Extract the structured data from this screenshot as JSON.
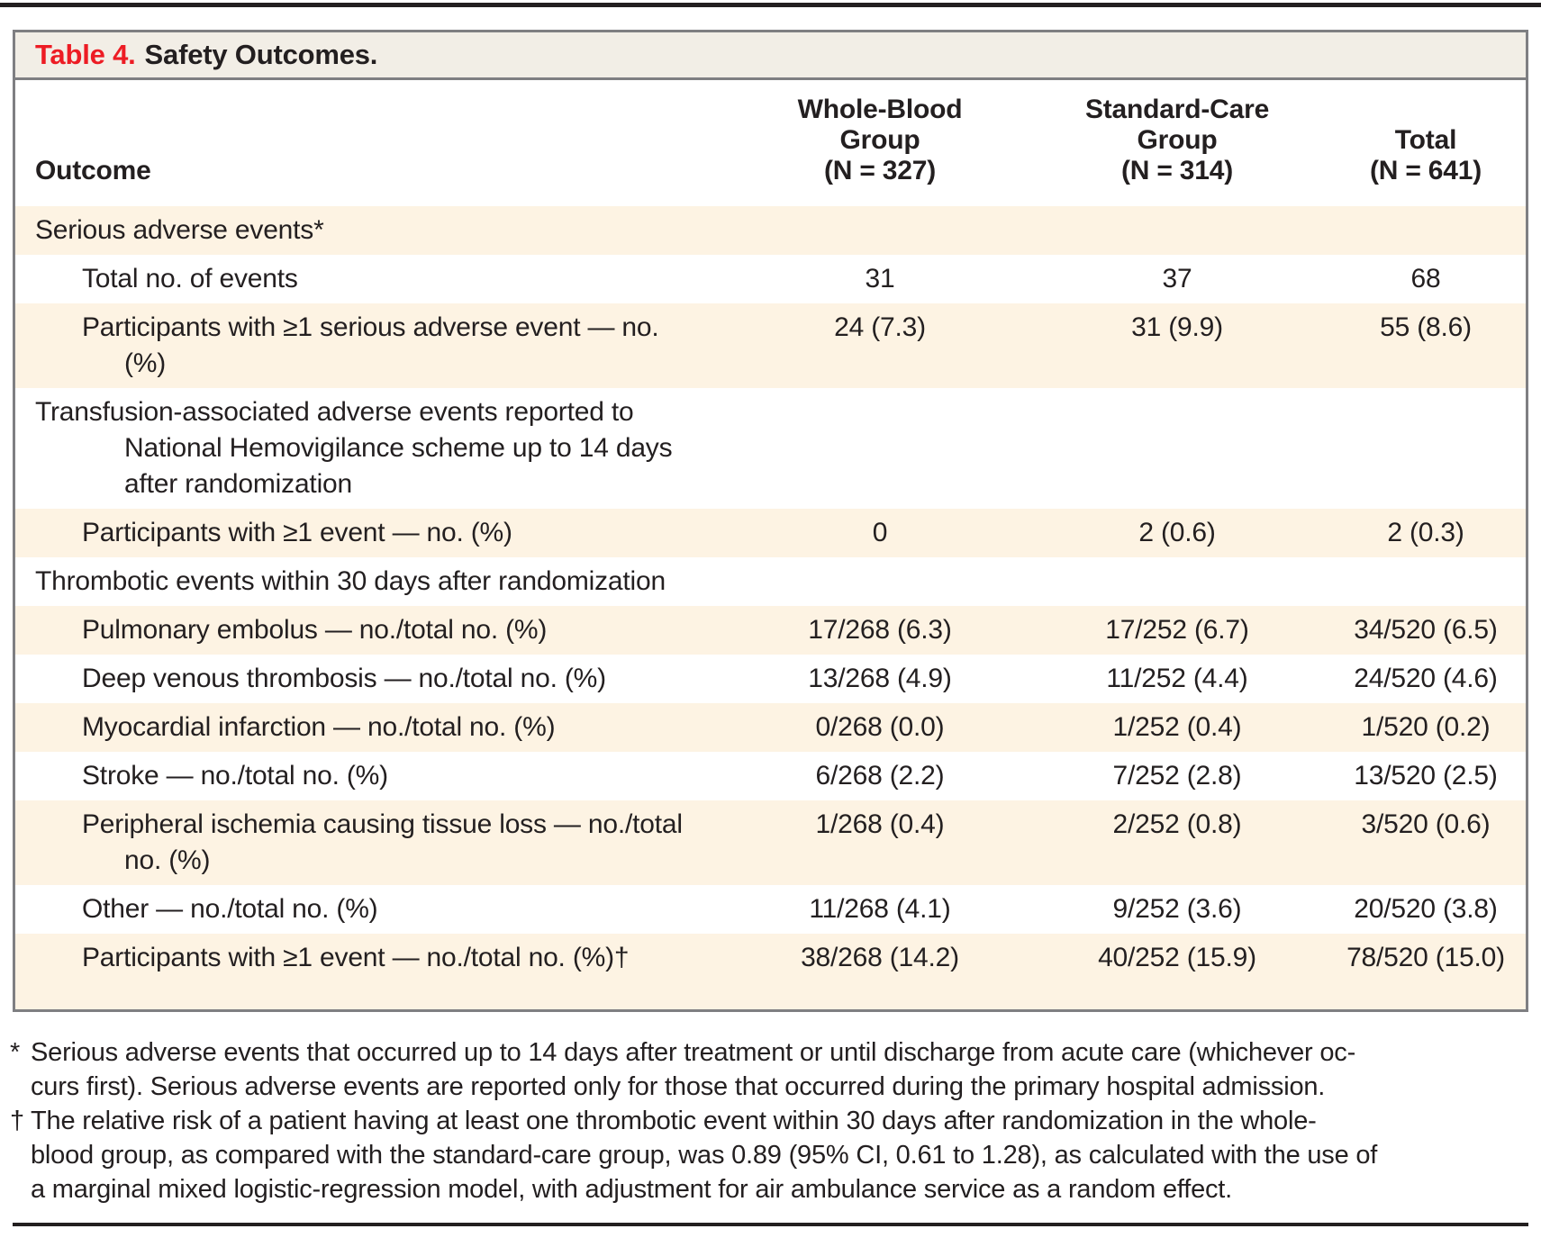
{
  "table": {
    "title_label": "Table 4.",
    "title_text": "Safety Outcomes.",
    "outcome_header": "Outcome",
    "columns": [
      {
        "label": "Whole-Blood\nGroup\n(N = 327)"
      },
      {
        "label": "Standard-Care\nGroup\n(N = 314)"
      },
      {
        "label": "Total\n(N = 641)"
      }
    ],
    "rows": [
      {
        "label": "Serious adverse events*",
        "indent": 0,
        "shaded": true,
        "values": [
          "",
          "",
          ""
        ]
      },
      {
        "label": "Total no. of events",
        "indent": 1,
        "shaded": false,
        "values": [
          "31",
          "37",
          "68"
        ]
      },
      {
        "label": "Participants with ≥1 serious adverse event — no.\n(%)",
        "indent": 1,
        "shaded": true,
        "values": [
          "24 (7.3)",
          "31 (9.9)",
          "55 (8.6)"
        ]
      },
      {
        "label": "Transfusion-associated adverse events reported to\nNational Hemovigilance scheme up to 14 days\nafter randomization",
        "indent": 0,
        "shaded": false,
        "values": [
          "",
          "",
          ""
        ]
      },
      {
        "label": "Participants with ≥1 event — no. (%)",
        "indent": 1,
        "shaded": true,
        "values": [
          "0",
          "2 (0.6)",
          "2 (0.3)"
        ]
      },
      {
        "label": "Thrombotic events within 30 days after randomization",
        "indent": 0,
        "shaded": false,
        "values": [
          "",
          "",
          ""
        ]
      },
      {
        "label": "Pulmonary embolus — no./total no. (%)",
        "indent": 1,
        "shaded": true,
        "values": [
          "17/268 (6.3)",
          "17/252 (6.7)",
          "34/520 (6.5)"
        ]
      },
      {
        "label": "Deep venous thrombosis — no./total no. (%)",
        "indent": 1,
        "shaded": false,
        "values": [
          "13/268 (4.9)",
          "11/252 (4.4)",
          "24/520 (4.6)"
        ]
      },
      {
        "label": "Myocardial infarction — no./total no. (%)",
        "indent": 1,
        "shaded": true,
        "values": [
          "0/268 (0.0)",
          "1/252 (0.4)",
          "1/520 (0.2)"
        ]
      },
      {
        "label": "Stroke — no./total no. (%)",
        "indent": 1,
        "shaded": false,
        "values": [
          "6/268 (2.2)",
          "7/252 (2.8)",
          "13/520 (2.5)"
        ]
      },
      {
        "label": "Peripheral ischemia causing tissue loss — no./total\nno. (%)",
        "indent": 1,
        "shaded": true,
        "values": [
          "1/268 (0.4)",
          "2/252 (0.8)",
          "3/520 (0.6)"
        ]
      },
      {
        "label": "Other — no./total no. (%)",
        "indent": 1,
        "shaded": false,
        "values": [
          "11/268 (4.1)",
          "9/252 (3.6)",
          "20/520 (3.8)"
        ]
      },
      {
        "label": "Participants with ≥1 event — no./total no. (%)†",
        "indent": 1,
        "shaded": true,
        "last": true,
        "values": [
          "38/268 (14.2)",
          "40/252 (15.9)",
          "78/520 (15.0)"
        ]
      }
    ]
  },
  "footnotes": [
    {
      "marker": "*",
      "lines": [
        "Serious adverse events that occurred up to 14 days after treatment or until discharge from acute care (whichever oc-",
        "curs first). Serious adverse events are reported only for those that occurred during the primary hospital admission."
      ]
    },
    {
      "marker": "†",
      "lines": [
        "The relative risk of a patient having at least one thrombotic event within 30 days after randomization in the whole-",
        "blood group, as compared with the standard-care group, was 0.89 (95% CI, 0.61 to 1.28), as calculated with the use of",
        "a marginal mixed logistic-regression model, with adjustment for air ambulance service as a random effect."
      ]
    }
  ],
  "colors": {
    "accent_red": "#ed1c24",
    "shaded_row": "#fdf3e3",
    "title_bar_bg": "#f2eee6",
    "border_gray": "#7f7f82",
    "text": "#231f20"
  }
}
